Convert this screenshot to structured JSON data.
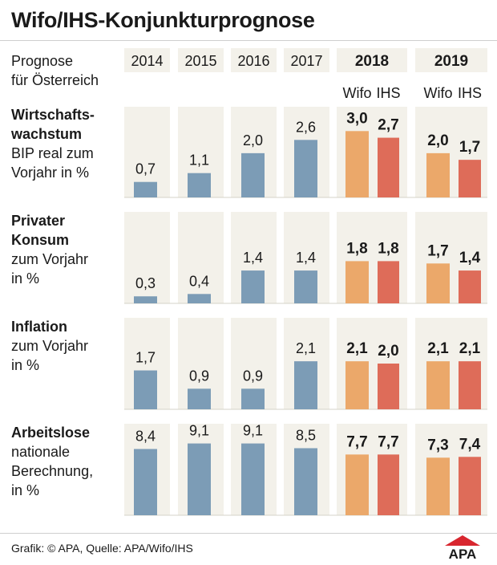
{
  "title": "Wifo/IHS-Konjunkturprognose",
  "header": {
    "label_line1": "Prognose",
    "label_line2": "für Österreich",
    "years": [
      "2014",
      "2015",
      "2016",
      "2017",
      "2018",
      "2019"
    ],
    "forecast_sub": [
      "Wifo",
      "IHS"
    ]
  },
  "rows": [
    {
      "lines": [
        "Wirtschafts-",
        "wachstum",
        "BIP real zum",
        "Vorjahr in %"
      ],
      "bold_lines": 2
    },
    {
      "lines": [
        "Privater",
        "Konsum",
        "zum Vorjahr",
        "in %"
      ],
      "bold_lines": 2
    },
    {
      "lines": [
        "Inflation",
        "zum Vorjahr",
        "in %"
      ],
      "bold_lines": 1
    },
    {
      "lines": [
        "Arbeitslose",
        "nationale",
        "Berechnung,",
        "in %"
      ],
      "bold_lines": 1
    }
  ],
  "chart_data": {
    "type": "bar",
    "categories": [
      "2014",
      "2015",
      "2016",
      "2017",
      "2018 Wifo",
      "2018 IHS",
      "2019 Wifo",
      "2019 IHS"
    ],
    "panels": [
      {
        "name": "Wirtschaftswachstum",
        "values": [
          0.7,
          1.1,
          2.0,
          2.6,
          3.0,
          2.7,
          2.0,
          1.7
        ],
        "labels": [
          "0,7",
          "1,1",
          "2,0",
          "2,6",
          "3,0",
          "2,7",
          "2,0",
          "1,7"
        ],
        "ymax": 4.1
      },
      {
        "name": "Privater Konsum",
        "values": [
          0.3,
          0.4,
          1.4,
          1.4,
          1.8,
          1.8,
          1.7,
          1.4
        ],
        "labels": [
          "0,3",
          "0,4",
          "1,4",
          "1,4",
          "1,8",
          "1,8",
          "1,7",
          "1,4"
        ],
        "ymax": 3.9
      },
      {
        "name": "Inflation",
        "values": [
          1.7,
          0.9,
          0.9,
          2.1,
          2.1,
          2.0,
          2.1,
          2.1
        ],
        "labels": [
          "1,7",
          "0,9",
          "0,9",
          "2,1",
          "2,1",
          "2,0",
          "2,1",
          "2,1"
        ],
        "ymax": 4.0
      },
      {
        "name": "Arbeitslose",
        "values": [
          8.4,
          9.1,
          9.1,
          8.5,
          7.7,
          7.7,
          7.3,
          7.4
        ],
        "labels": [
          "8,4",
          "9,1",
          "9,1",
          "8,5",
          "7,7",
          "7,7",
          "7,3",
          "7,4"
        ],
        "ymax": 11.6
      }
    ],
    "colors": {
      "actual": "#7c9cb6",
      "wifo": "#eba86a",
      "ihs": "#de6c59",
      "panel_bg": "#f3f1ea"
    }
  },
  "footer": {
    "credit": "Grafik: © APA, Quelle: APA/Wifo/IHS",
    "logo_text": "APA"
  }
}
